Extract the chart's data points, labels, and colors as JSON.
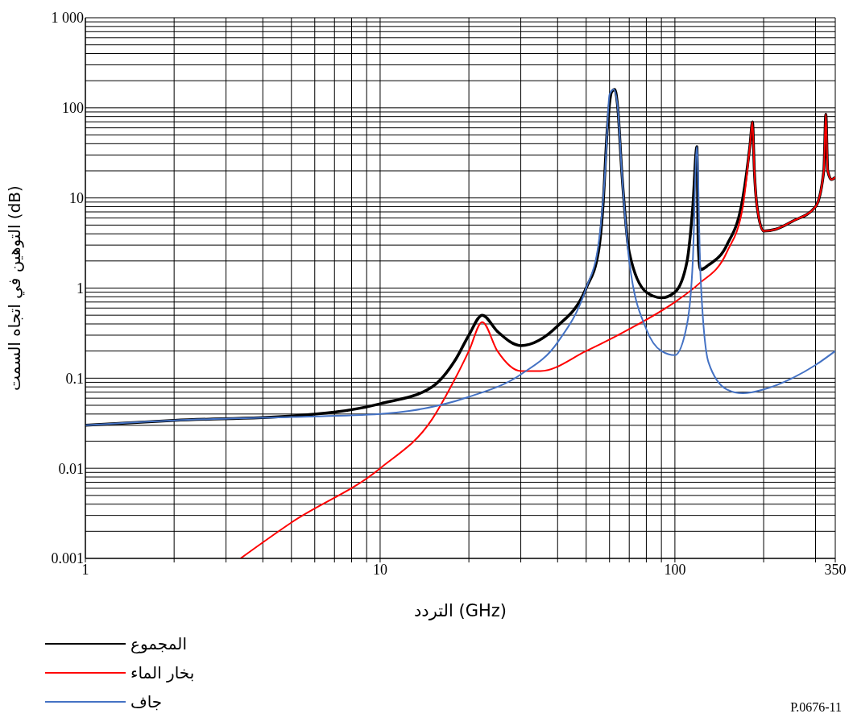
{
  "chart_data": {
    "type": "line",
    "xlabel": "التردد (GHz)",
    "ylabel": "التوهين في اتجاه السمت (dB)",
    "log": "xy",
    "xlim": [
      1,
      350
    ],
    "ylim": [
      0.001,
      1000
    ],
    "xticks": [
      1,
      {
        "value": 2,
        "label": null
      },
      {
        "value": 3,
        "label": null
      },
      {
        "value": 4,
        "label": null
      },
      {
        "value": 5,
        "label": null
      },
      {
        "value": 6,
        "label": null
      },
      {
        "value": 7,
        "label": null
      },
      {
        "value": 8,
        "label": null
      },
      {
        "value": 9,
        "label": null
      },
      10,
      {
        "value": 20,
        "label": null
      },
      {
        "value": 30,
        "label": null
      },
      {
        "value": 40,
        "label": null
      },
      {
        "value": 50,
        "label": null
      },
      {
        "value": 60,
        "label": null
      },
      {
        "value": 70,
        "label": null
      },
      {
        "value": 80,
        "label": null
      },
      {
        "value": 90,
        "label": null
      },
      100,
      {
        "value": 200,
        "label": null
      },
      {
        "value": 300,
        "label": null
      },
      350
    ],
    "yticks": [
      0.001,
      {
        "value": 0.002,
        "label": null
      },
      {
        "value": 0.003,
        "label": null
      },
      {
        "value": 0.004,
        "label": null
      },
      {
        "value": 0.005,
        "label": null
      },
      {
        "value": 0.006,
        "label": null
      },
      {
        "value": 0.007,
        "label": null
      },
      {
        "value": 0.008,
        "label": null
      },
      {
        "value": 0.009,
        "label": null
      },
      0.01,
      {
        "value": 0.02,
        "label": null
      },
      {
        "value": 0.03,
        "label": null
      },
      {
        "value": 0.04,
        "label": null
      },
      {
        "value": 0.05,
        "label": null
      },
      {
        "value": 0.06,
        "label": null
      },
      {
        "value": 0.07,
        "label": null
      },
      {
        "value": 0.08,
        "label": null
      },
      {
        "value": 0.09,
        "label": null
      },
      0.1,
      {
        "value": 0.2,
        "label": null
      },
      {
        "value": 0.3,
        "label": null
      },
      {
        "value": 0.4,
        "label": null
      },
      {
        "value": 0.5,
        "label": null
      },
      {
        "value": 0.6,
        "label": null
      },
      {
        "value": 0.7,
        "label": null
      },
      {
        "value": 0.8,
        "label": null
      },
      {
        "value": 0.9,
        "label": null
      },
      1,
      {
        "value": 2,
        "label": null
      },
      {
        "value": 3,
        "label": null
      },
      {
        "value": 4,
        "label": null
      },
      {
        "value": 5,
        "label": null
      },
      {
        "value": 6,
        "label": null
      },
      {
        "value": 7,
        "label": null
      },
      {
        "value": 8,
        "label": null
      },
      {
        "value": 9,
        "label": null
      },
      10,
      {
        "value": 20,
        "label": null
      },
      {
        "value": 30,
        "label": null
      },
      {
        "value": 40,
        "label": null
      },
      {
        "value": 50,
        "label": null
      },
      {
        "value": 60,
        "label": null
      },
      {
        "value": 70,
        "label": null
      },
      {
        "value": 80,
        "label": null
      },
      {
        "value": 90,
        "label": null
      },
      100,
      {
        "value": 200,
        "label": null
      },
      {
        "value": 300,
        "label": null
      },
      {
        "value": 400,
        "label": null
      },
      {
        "value": 500,
        "label": null
      },
      {
        "value": 600,
        "label": null
      },
      {
        "value": 700,
        "label": null
      },
      {
        "value": 800,
        "label": null
      },
      {
        "value": 900,
        "label": null
      },
      {
        "value": 1000,
        "label": "1 000"
      }
    ],
    "grid": true,
    "legend": "bottom",
    "line_style": "solid",
    "series": [
      {
        "name": "المجموع",
        "color": "#000000",
        "x": [
          1,
          2,
          5,
          10,
          15,
          18,
          20,
          22.2,
          25,
          30,
          40,
          50,
          55,
          57,
          59,
          61,
          62.5,
          64,
          66,
          70,
          80,
          90,
          100,
          110,
          115,
          118.75,
          120,
          122,
          130,
          150,
          170,
          180,
          183.3,
          186,
          190,
          200,
          220,
          250,
          300,
          320,
          325.15,
          330,
          340,
          350
        ],
        "values": [
          0.03,
          0.034,
          0.038,
          0.052,
          0.08,
          0.16,
          0.3,
          0.5,
          0.33,
          0.23,
          0.38,
          1.0,
          2.5,
          8,
          60,
          150,
          160,
          100,
          20,
          2.5,
          0.9,
          0.78,
          0.9,
          2,
          8,
          37,
          3,
          1.6,
          1.8,
          3,
          10,
          40,
          70,
          20,
          8,
          4.3,
          4.5,
          5.5,
          8,
          20,
          85,
          20,
          16,
          17
        ]
      },
      {
        "name": "بخار الماء",
        "color": "#ff0000",
        "x": [
          3.36,
          5,
          10,
          15,
          18,
          20,
          22.2,
          25,
          30,
          35,
          50,
          70,
          100,
          120,
          150,
          170,
          180,
          183.3,
          186,
          190,
          200,
          220,
          250,
          300,
          320,
          325.15,
          330,
          340,
          350
        ],
        "values": [
          0.001,
          0.0025,
          0.01,
          0.035,
          0.1,
          0.2,
          0.42,
          0.2,
          0.12,
          0.12,
          0.2,
          0.35,
          0.7,
          1.1,
          2.5,
          8,
          40,
          70,
          20,
          8,
          4.3,
          4.5,
          5.5,
          8,
          20,
          85,
          20,
          16,
          17
        ]
      },
      {
        "name": "جاف",
        "color": "#4472c4",
        "x": [
          1,
          2,
          5,
          10,
          20,
          30,
          40,
          50,
          55,
          58,
          60,
          62,
          64,
          66,
          70,
          80,
          90,
          100,
          110,
          115,
          118.75,
          122,
          130,
          150,
          170,
          200,
          250,
          300,
          350
        ],
        "values": [
          0.03,
          0.034,
          0.037,
          0.04,
          0.062,
          0.11,
          0.25,
          1.0,
          3,
          20,
          140,
          160,
          100,
          20,
          2,
          0.35,
          0.2,
          0.18,
          0.4,
          2,
          37,
          1.5,
          0.15,
          0.075,
          0.068,
          0.075,
          0.1,
          0.14,
          0.2
        ]
      }
    ],
    "annotations": [
      "P.0676-11"
    ]
  }
}
